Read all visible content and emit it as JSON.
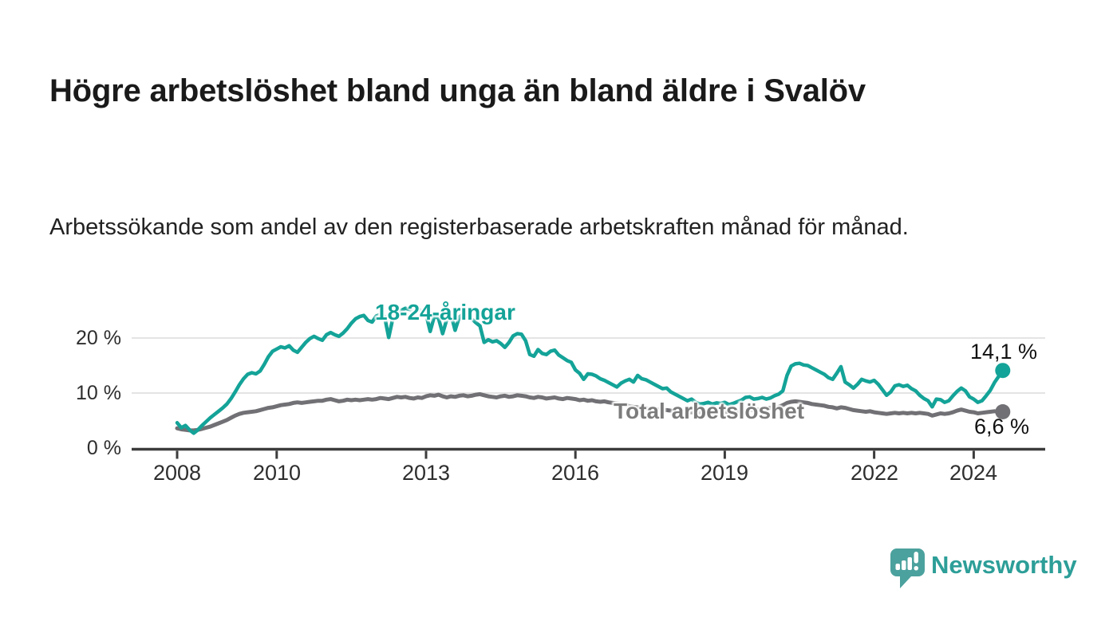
{
  "header": {
    "title": "Högre arbetslöshet bland unga än bland äldre i Svalöv",
    "subtitle": "Arbetssökande som andel av den registerbaserade arbetskraften månad för månad."
  },
  "chart_data": {
    "type": "line",
    "title": "Högre arbetslöshet bland unga än bland äldre i Svalöv",
    "x_unit": "month",
    "x_start_year": 2008,
    "x_end_label_period": "2024",
    "ylim": [
      0,
      27
    ],
    "y_unit": "%",
    "grid": "horizontal",
    "legend_position": "inline-labels",
    "y_tick_labels": [
      "20 %",
      "10 %",
      "0 %"
    ],
    "y_tick_values": [
      20,
      10,
      0
    ],
    "x_tick_labels": [
      "2008",
      "2010",
      "2013",
      "2016",
      "2019",
      "2022",
      "2024"
    ],
    "x_tick_years": [
      2008,
      2010,
      2013,
      2016,
      2019,
      2022,
      2024
    ],
    "series": [
      {
        "name": "18-24-åringar",
        "color": "#14a398",
        "end_value": 14.1,
        "end_label": "14,1 %",
        "values": [
          4.6,
          3.7,
          4.1,
          3.3,
          2.7,
          3.3,
          4.1,
          4.8,
          5.5,
          6.1,
          6.7,
          7.3,
          8.0,
          9.0,
          10.2,
          11.5,
          12.6,
          13.4,
          13.7,
          13.5,
          14.0,
          15.2,
          16.6,
          17.6,
          18.0,
          18.4,
          18.2,
          18.6,
          17.8,
          17.4,
          18.3,
          19.2,
          19.9,
          20.3,
          19.9,
          19.6,
          20.6,
          21.0,
          20.6,
          20.3,
          20.9,
          21.7,
          22.7,
          23.5,
          23.9,
          24.1,
          23.2,
          22.9,
          24.0,
          24.3,
          23.9,
          20.1,
          23.6,
          24.6,
          25.0,
          25.4,
          25.2,
          25.0,
          25.3,
          24.8,
          24.3,
          21.2,
          24.0,
          23.6,
          20.8,
          23.4,
          24.3,
          21.4,
          23.8,
          24.4,
          24.0,
          23.5,
          22.8,
          22.2,
          19.2,
          19.7,
          19.3,
          19.5,
          19.0,
          18.3,
          19.2,
          20.4,
          20.8,
          20.7,
          19.5,
          17.0,
          16.7,
          17.9,
          17.2,
          17.0,
          17.6,
          17.8,
          16.9,
          16.4,
          15.9,
          15.6,
          14.2,
          13.6,
          12.5,
          13.5,
          13.4,
          13.1,
          12.6,
          12.3,
          11.9,
          11.5,
          11.1,
          11.8,
          12.2,
          12.5,
          12.0,
          13.2,
          12.6,
          12.4,
          12.0,
          11.6,
          11.2,
          10.8,
          10.9,
          10.2,
          9.8,
          9.4,
          9.0,
          8.6,
          8.9,
          8.3,
          8.0,
          8.1,
          8.3,
          8.0,
          8.2,
          8.1,
          8.3,
          7.9,
          8.1,
          8.4,
          8.7,
          9.2,
          9.3,
          8.9,
          9.0,
          9.2,
          8.9,
          9.1,
          9.5,
          9.8,
          10.4,
          13.2,
          14.9,
          15.3,
          15.4,
          15.1,
          15.0,
          14.6,
          14.2,
          13.8,
          13.4,
          12.8,
          12.5,
          13.6,
          14.8,
          12.0,
          11.5,
          10.9,
          11.6,
          12.5,
          12.2,
          12.0,
          12.3,
          11.6,
          10.6,
          9.6,
          10.2,
          11.3,
          11.5,
          11.2,
          11.4,
          10.8,
          10.4,
          9.6,
          9.0,
          8.6,
          7.5,
          8.9,
          8.8,
          8.3,
          8.6,
          9.5,
          10.3,
          10.9,
          10.4,
          9.3,
          8.9,
          8.3,
          8.6,
          9.5,
          10.5,
          11.9,
          13.0,
          14.1
        ]
      },
      {
        "name": "Total arbetslöshet",
        "color": "#717175",
        "end_value": 6.6,
        "end_label": "6,6 %",
        "values": [
          3.6,
          3.4,
          3.3,
          3.2,
          3.2,
          3.3,
          3.5,
          3.7,
          3.9,
          4.2,
          4.5,
          4.8,
          5.1,
          5.5,
          5.9,
          6.2,
          6.4,
          6.5,
          6.6,
          6.7,
          6.9,
          7.1,
          7.3,
          7.4,
          7.6,
          7.8,
          7.9,
          8.0,
          8.2,
          8.3,
          8.2,
          8.3,
          8.4,
          8.5,
          8.6,
          8.6,
          8.8,
          8.9,
          8.7,
          8.5,
          8.6,
          8.8,
          8.7,
          8.8,
          8.7,
          8.8,
          8.9,
          8.8,
          8.9,
          9.1,
          9.0,
          8.9,
          9.1,
          9.3,
          9.2,
          9.3,
          9.1,
          9.0,
          9.2,
          9.1,
          9.4,
          9.6,
          9.5,
          9.7,
          9.4,
          9.2,
          9.4,
          9.3,
          9.5,
          9.6,
          9.4,
          9.5,
          9.7,
          9.8,
          9.6,
          9.4,
          9.3,
          9.2,
          9.4,
          9.5,
          9.3,
          9.4,
          9.6,
          9.5,
          9.4,
          9.2,
          9.1,
          9.3,
          9.2,
          9.0,
          9.1,
          9.2,
          9.0,
          8.9,
          9.1,
          9.0,
          8.9,
          8.7,
          8.8,
          8.6,
          8.7,
          8.5,
          8.4,
          8.5,
          8.3,
          8.2,
          8.1,
          8.0,
          7.8,
          7.6,
          7.5,
          7.4,
          7.3,
          7.2,
          7.1,
          7.0,
          7.0,
          6.9,
          6.9,
          6.8,
          6.8,
          6.7,
          6.6,
          6.6,
          6.5,
          6.5,
          6.4,
          6.4,
          6.5,
          6.5,
          6.6,
          6.6,
          6.6,
          6.5,
          6.5,
          6.6,
          6.7,
          6.8,
          6.9,
          6.9,
          7.0,
          7.1,
          7.2,
          7.3,
          7.4,
          7.5,
          7.8,
          8.2,
          8.4,
          8.5,
          8.4,
          8.3,
          8.2,
          8.0,
          7.9,
          7.8,
          7.7,
          7.5,
          7.4,
          7.2,
          7.4,
          7.3,
          7.1,
          6.9,
          6.8,
          6.7,
          6.6,
          6.7,
          6.5,
          6.4,
          6.3,
          6.2,
          6.3,
          6.4,
          6.3,
          6.4,
          6.3,
          6.4,
          6.3,
          6.4,
          6.3,
          6.2,
          5.9,
          6.1,
          6.3,
          6.2,
          6.3,
          6.5,
          6.8,
          7.0,
          6.8,
          6.6,
          6.5,
          6.3,
          6.4,
          6.5,
          6.6,
          6.7,
          6.6,
          6.6
        ]
      }
    ],
    "colors": {
      "gridline": "#dcdcdc",
      "axis": "#3c3c3c",
      "tick_text": "#2e2e2e"
    }
  },
  "footer": {
    "brand": "Newsworthy",
    "brand_color": "#2d9e98",
    "logo_bubble_color": "#4ba19d",
    "logo_icon": "bar-chart-speech-bubble-icon"
  }
}
